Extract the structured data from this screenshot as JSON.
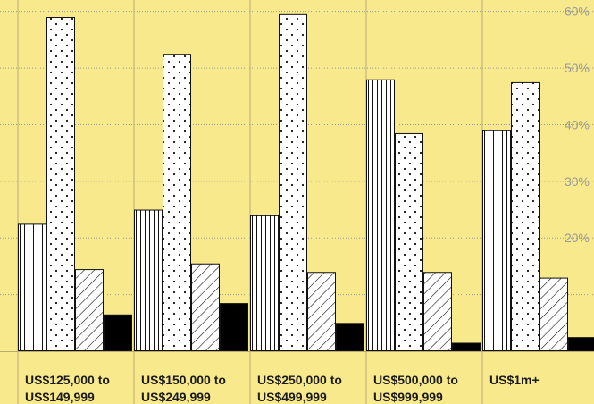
{
  "chart_data": {
    "type": "bar",
    "title": "",
    "xlabel": "",
    "ylabel": "",
    "categories": [
      [
        "US$125,000 to",
        "US$149,999"
      ],
      [
        "US$150,000 to",
        "US$249,999"
      ],
      [
        "US$250,000 to",
        "US$499,999"
      ],
      [
        "US$500,000 to",
        "US$999,999"
      ],
      [
        "US$1m+"
      ]
    ],
    "series": [
      {
        "pattern": "vertical-stripes",
        "values": [
          22.5,
          25,
          24,
          48,
          39
        ]
      },
      {
        "pattern": "dots",
        "values": [
          59,
          52.5,
          59.5,
          38.5,
          47.5
        ]
      },
      {
        "pattern": "diagonal-hatch",
        "values": [
          14.5,
          15.5,
          14,
          14,
          13
        ]
      },
      {
        "pattern": "solid",
        "values": [
          6.5,
          8.5,
          5,
          1.5,
          2.5
        ]
      }
    ],
    "ylim": [
      0,
      62
    ],
    "yticks": [
      {
        "value": 20,
        "label": "20%"
      },
      {
        "value": 30,
        "label": "30%"
      },
      {
        "value": 40,
        "label": "40%"
      },
      {
        "value": 50,
        "label": "50%"
      },
      {
        "value": 60,
        "label": "60%"
      }
    ],
    "grid": true,
    "colors": {
      "background": "#f8e98c",
      "bar_fill": "#ffffff",
      "bar_stroke": "#111111",
      "solid": "#000000",
      "grid": "#9a9a9a",
      "tick_text": "#9a9a9a",
      "category_text": "#1a1a1a"
    }
  }
}
